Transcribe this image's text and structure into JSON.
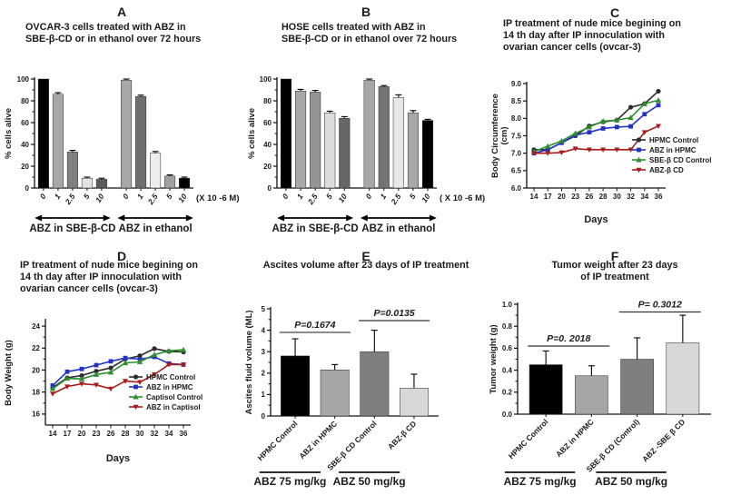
{
  "chart_data": [
    {
      "panel_label": "A",
      "type": "bar",
      "title": "OVCAR-3 cells treated with ABZ in\nSBE-β-CD or in ethanol over 72 hours",
      "ylabel": "% cells alive",
      "ylim": [
        0,
        100
      ],
      "yticks": [
        0,
        20,
        40,
        60,
        80,
        100
      ],
      "categories": [
        "0",
        "1",
        "2.5",
        "5",
        "10",
        "0",
        "1",
        "2.5",
        "5",
        "10"
      ],
      "values": [
        100,
        86,
        33,
        9,
        8,
        99,
        84,
        32,
        11,
        9
      ],
      "errors": [
        0,
        1.5,
        1.5,
        1,
        1,
        1,
        1.2,
        1.5,
        1,
        1
      ],
      "bar_colors": [
        "#000000",
        "#a8a8a8",
        "#7f7f7f",
        "#e2e2e2",
        "#5a5a5a",
        "#a8a8a8",
        "#6f6f6f",
        "#ededed",
        "#a0a0a0",
        "#000000"
      ],
      "group_gap_after": 4,
      "x_unit_label": "(X 10 -6 M)",
      "arrow_groups": [
        {
          "label": "ABZ in SBE-β-CD",
          "from": 0,
          "to": 4
        },
        {
          "label": "ABZ in ethanol",
          "from": 5,
          "to": 9
        }
      ]
    },
    {
      "panel_label": "B",
      "type": "bar",
      "title": "HOSE cells treated with ABZ in\nSBE-β-CD or in ethanol over 72 hours",
      "ylabel": "% cells alive",
      "ylim": [
        0,
        100
      ],
      "yticks": [
        0,
        20,
        40,
        60,
        80,
        100
      ],
      "categories": [
        "0",
        "1",
        "2.5",
        "5",
        "10",
        "0",
        "1",
        "2.5",
        "5",
        "10"
      ],
      "values": [
        100,
        89,
        88,
        69,
        64,
        99,
        93,
        83,
        69,
        62
      ],
      "errors": [
        0,
        1.5,
        1.5,
        1.5,
        1.5,
        1,
        1,
        2.5,
        2,
        1
      ],
      "bar_colors": [
        "#000000",
        "#a8a8a8",
        "#949494",
        "#dcdcdc",
        "#666666",
        "#a8a8a8",
        "#747474",
        "#e8e8e8",
        "#a8a8a8",
        "#000000"
      ],
      "group_gap_after": 4,
      "x_unit_label": "( X 10 -6 M)",
      "arrow_groups": [
        {
          "label": "ABZ in SBE-β-CD",
          "from": 0,
          "to": 4
        },
        {
          "label": "ABZ in ethanol",
          "from": 5,
          "to": 9
        }
      ]
    },
    {
      "panel_label": "C",
      "type": "line",
      "title": "IP treatment of nude mice begining on\n14 th day after IP innoculation with\novarian cancer cells (ovcar-3)",
      "ylabel": "Body Circumference\n(cm)",
      "xlabel": "Days",
      "ylim": [
        6.0,
        9.0
      ],
      "yticks": [
        6.0,
        6.5,
        7.0,
        7.5,
        8.0,
        8.5,
        9.0
      ],
      "x": [
        "14",
        "17",
        "20",
        "23",
        "26",
        "28",
        "30",
        "32",
        "34",
        "36"
      ],
      "legend_position": "right-inside",
      "series": [
        {
          "name": "HPMC Control",
          "color": "#2b2b2b",
          "marker": "circle",
          "values": [
            7.1,
            7.1,
            7.3,
            7.5,
            7.78,
            7.9,
            7.95,
            8.32,
            8.42,
            8.78
          ]
        },
        {
          "name": "ABZ in HPMC",
          "color": "#2132c4",
          "marker": "square",
          "values": [
            7.0,
            7.1,
            7.3,
            7.52,
            7.6,
            7.71,
            7.75,
            7.77,
            8.12,
            8.38
          ]
        },
        {
          "name": "SBE-β CD Control",
          "color": "#2e8f2e",
          "marker": "triangle",
          "values": [
            7.05,
            7.2,
            7.35,
            7.57,
            7.75,
            7.92,
            7.95,
            8.02,
            8.42,
            8.52
          ]
        },
        {
          "name": "ABZ-β CD",
          "color": "#a81c1c",
          "marker": "triangle-down",
          "values": [
            7.0,
            7.0,
            7.02,
            7.13,
            7.1,
            7.1,
            7.1,
            7.1,
            7.6,
            7.78
          ]
        }
      ]
    },
    {
      "panel_label": "D",
      "type": "line",
      "title": "IP treatment of nude mice begining on\n14 th day after IP innoculation with\novarian cancer cells (ovcar-3)",
      "ylabel": "Body Weight (g)",
      "xlabel": "Days",
      "ylim": [
        15,
        24.5
      ],
      "yticks": [
        16,
        18,
        20,
        22,
        24
      ],
      "x": [
        "14",
        "17",
        "20",
        "23",
        "26",
        "28",
        "30",
        "32",
        "34",
        "36"
      ],
      "legend_position": "right-inside",
      "series": [
        {
          "name": "HPMC Control",
          "color": "#2b2b2b",
          "marker": "circle",
          "values": [
            18.4,
            19.3,
            19.5,
            19.9,
            20.2,
            21.0,
            21.3,
            21.95,
            21.7,
            21.65
          ]
        },
        {
          "name": "ABZ in HPMC",
          "color": "#2132c4",
          "marker": "square",
          "values": [
            18.6,
            19.85,
            20.1,
            20.45,
            20.8,
            21.1,
            21.0,
            21.2,
            20.6,
            20.5
          ]
        },
        {
          "name": "Captisol Control",
          "color": "#2e8f2e",
          "marker": "triangle",
          "values": [
            18.3,
            19.25,
            19.2,
            19.6,
            19.8,
            20.65,
            20.75,
            21.4,
            21.75,
            21.85
          ]
        },
        {
          "name": "ABZ in Captisol",
          "color": "#a81c1c",
          "marker": "triangle-down",
          "values": [
            17.85,
            18.5,
            18.75,
            18.65,
            18.3,
            19.0,
            18.9,
            19.6,
            20.5,
            20.5
          ]
        }
      ]
    },
    {
      "panel_label": "E",
      "type": "bar",
      "title": "Ascites volume after 23 days of IP treatment",
      "ylabel": "Ascites fluid volume (ML)",
      "ylim": [
        0,
        5
      ],
      "yticks": [
        0,
        1,
        2,
        3,
        4,
        5
      ],
      "categories": [
        "HPMC Control",
        "ABZ in HPMC",
        "SBE-β CD Control",
        "ABZ-β CD"
      ],
      "values": [
        2.8,
        2.15,
        3.0,
        1.3
      ],
      "errors": [
        0.8,
        0.25,
        1.0,
        0.65
      ],
      "bar_colors": [
        "#000000",
        "#a6a6a6",
        "#7f7f7f",
        "#d8d8d8"
      ],
      "significance": [
        {
          "label": "P=0.1674",
          "from": 0,
          "to": 1,
          "y": 3.9
        },
        {
          "label": "P=0.0135",
          "from": 2,
          "to": 3,
          "y": 4.45
        }
      ],
      "bottom_groups": [
        {
          "label": "ABZ 75 mg/kg",
          "from": 0,
          "to": 1
        },
        {
          "label": "ABZ 50 mg/kg",
          "from": 2,
          "to": 3
        }
      ]
    },
    {
      "panel_label": "F",
      "type": "bar",
      "title": "Tumor weight after 23 days\nof IP treatment",
      "ylabel": "Tumor weight (g)",
      "ylim": [
        0,
        1.0
      ],
      "yticks": [
        0.0,
        0.2,
        0.4,
        0.6,
        0.8,
        1.0
      ],
      "categories": [
        "HPMC Control",
        "ABZ in HPMC",
        "SBE-β CD (Control)",
        "ABZ -SBE β CD"
      ],
      "values": [
        0.45,
        0.35,
        0.5,
        0.65
      ],
      "errors": [
        0.125,
        0.09,
        0.195,
        0.25
      ],
      "bar_colors": [
        "#000000",
        "#a6a6a6",
        "#7f7f7f",
        "#d8d8d8"
      ],
      "significance": [
        {
          "label": "P=0. 2018",
          "from": 0,
          "to": 1,
          "y": 0.62
        },
        {
          "label": "P= 0.3012",
          "from": 2,
          "to": 3,
          "y": 0.93
        }
      ],
      "bottom_groups": [
        {
          "label": "ABZ 75 mg/kg",
          "from": 0,
          "to": 1
        },
        {
          "label": "ABZ 50 mg/kg",
          "from": 2,
          "to": 3
        }
      ]
    }
  ]
}
